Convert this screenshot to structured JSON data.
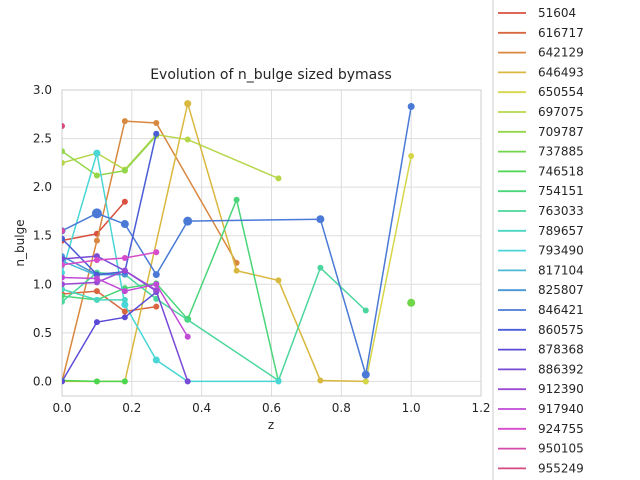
{
  "chart_data": {
    "type": "line",
    "title": "Evolution of n_bulge sized bymass",
    "xlabel": "z",
    "ylabel": "n_bulge",
    "xlim": [
      0.0,
      1.2
    ],
    "ylim": [
      -0.15,
      3.0
    ],
    "xticks": [
      "0.0",
      "0.2",
      "0.4",
      "0.6",
      "0.8",
      "1.0",
      "1.2"
    ],
    "yticks": [
      "0.0",
      "0.5",
      "1.0",
      "1.5",
      "2.0",
      "2.5",
      "3.0"
    ],
    "grid": true,
    "legend_position": "right",
    "series": [
      {
        "name": "51604",
        "color": "#d9503f",
        "x": [
          0.0,
          0.1,
          0.18
        ],
        "y": [
          1.45,
          1.52,
          1.85
        ],
        "size": [
          3,
          3,
          3
        ]
      },
      {
        "name": "616717",
        "color": "#d9663f",
        "x": [
          0.0,
          0.1,
          0.18,
          0.27
        ],
        "y": [
          0.9,
          0.93,
          0.72,
          0.77
        ],
        "size": [
          3,
          3,
          3,
          3
        ]
      },
      {
        "name": "642129",
        "color": "#d9883f",
        "x": [
          0.0,
          0.1,
          0.18,
          0.27,
          0.5
        ],
        "y": [
          0.0,
          1.45,
          2.68,
          2.66,
          1.22
        ],
        "size": [
          3,
          3,
          3,
          3,
          3
        ]
      },
      {
        "name": "646493",
        "color": "#d9b83f",
        "x": [
          0.0,
          0.1,
          0.18,
          0.36,
          0.5,
          0.62,
          0.74,
          0.87
        ],
        "y": [
          0.0,
          0.0,
          0.0,
          2.86,
          1.14,
          1.04,
          0.01,
          0.0
        ],
        "size": [
          3,
          3,
          3,
          3.5,
          3,
          3,
          3,
          3
        ]
      },
      {
        "name": "650554",
        "color": "#d6d64a",
        "x": [
          0.87,
          1.0
        ],
        "y": [
          0.0,
          2.32
        ],
        "size": [
          3,
          3
        ]
      },
      {
        "name": "697075",
        "color": "#b6d64a",
        "x": [
          0.0,
          0.1,
          0.18,
          0.27,
          0.36,
          0.62
        ],
        "y": [
          2.25,
          2.35,
          2.18,
          2.54,
          2.49,
          2.09
        ],
        "size": [
          3,
          3,
          3,
          3,
          3,
          3
        ]
      },
      {
        "name": "709787",
        "color": "#94d64a",
        "x": [
          0.0,
          0.1,
          0.18,
          0.27
        ],
        "y": [
          2.37,
          2.12,
          2.17,
          2.53
        ],
        "size": [
          3,
          3,
          3,
          3
        ]
      },
      {
        "name": "737885",
        "color": "#6fd64a",
        "x": [
          1.0
        ],
        "y": [
          0.81
        ],
        "size": [
          4
        ]
      },
      {
        "name": "746518",
        "color": "#4ad64f",
        "x": [
          0.0,
          0.1,
          0.18
        ],
        "y": [
          0.01,
          0.0,
          0.0
        ],
        "size": [
          3,
          3,
          3
        ]
      },
      {
        "name": "754151",
        "color": "#4ad678",
        "x": [
          0.0,
          0.1,
          0.18,
          0.27,
          0.36,
          0.5,
          0.62
        ],
        "y": [
          0.88,
          0.84,
          0.96,
          1.01,
          0.64,
          1.87,
          0.0
        ],
        "size": [
          3,
          3,
          3,
          3,
          3.5,
          3,
          3
        ]
      },
      {
        "name": "763033",
        "color": "#4ad69c",
        "x": [
          0.0,
          0.1,
          0.18,
          0.27,
          0.62,
          0.74,
          0.87
        ],
        "y": [
          0.82,
          1.12,
          1.1,
          0.85,
          0.01,
          1.17,
          0.73
        ],
        "size": [
          3,
          3,
          3,
          3,
          3,
          3,
          3
        ]
      },
      {
        "name": "789657",
        "color": "#4ad6c0",
        "x": [
          0.0,
          0.1,
          0.18
        ],
        "y": [
          0.95,
          0.84,
          0.84
        ],
        "size": [
          3,
          3,
          3
        ]
      },
      {
        "name": "793490",
        "color": "#4ad6d6",
        "x": [
          0.0,
          0.1,
          0.18,
          0.27,
          0.36,
          0.62
        ],
        "y": [
          1.12,
          2.35,
          0.79,
          0.22,
          0.0,
          0.0
        ],
        "size": [
          3,
          3.5,
          3.5,
          3.5,
          3,
          3
        ]
      },
      {
        "name": "817104",
        "color": "#4ab8d6",
        "x": [
          0.0,
          0.1
        ],
        "y": [
          1.24,
          1.09
        ],
        "size": [
          3,
          3
        ]
      },
      {
        "name": "825807",
        "color": "#4a94d6",
        "x": [
          0.0,
          0.1,
          0.18
        ],
        "y": [
          1.29,
          1.1,
          1.1
        ],
        "size": [
          3,
          3,
          3
        ]
      },
      {
        "name": "846421",
        "color": "#4a7ad6",
        "x": [
          0.0,
          0.1,
          0.18,
          0.27,
          0.36,
          0.74,
          0.87,
          1.0
        ],
        "y": [
          1.55,
          1.73,
          1.62,
          1.1,
          1.65,
          1.67,
          0.07,
          2.83
        ],
        "size": [
          3.5,
          5,
          4,
          3.5,
          4.5,
          4,
          4,
          3.5
        ]
      },
      {
        "name": "860575",
        "color": "#4a5cd6",
        "x": [
          0.0,
          0.1,
          0.18,
          0.27
        ],
        "y": [
          1.47,
          1.1,
          1.13,
          2.55
        ],
        "size": [
          3,
          3,
          3,
          3
        ]
      },
      {
        "name": "878368",
        "color": "#5a4ad6",
        "x": [
          0.0,
          0.1,
          0.18,
          0.27
        ],
        "y": [
          0.0,
          0.61,
          0.66,
          0.92
        ],
        "size": [
          3,
          3,
          3,
          3
        ]
      },
      {
        "name": "886392",
        "color": "#784ad6",
        "x": [
          0.0,
          0.1,
          0.18,
          0.27,
          0.36
        ],
        "y": [
          1.26,
          1.29,
          1.14,
          0.93,
          0.0
        ],
        "size": [
          3,
          3,
          3,
          3,
          3
        ]
      },
      {
        "name": "912390",
        "color": "#9c4ad6",
        "x": [
          0.0,
          0.1,
          0.18,
          0.27
        ],
        "y": [
          1.0,
          1.02,
          1.14,
          0.94
        ],
        "size": [
          3,
          3,
          3,
          3
        ]
      },
      {
        "name": "917940",
        "color": "#c04ad6",
        "x": [
          0.0,
          0.1,
          0.18,
          0.27,
          0.36
        ],
        "y": [
          1.07,
          1.06,
          0.93,
          1.0,
          0.46
        ],
        "size": [
          3,
          3,
          3,
          3,
          3
        ]
      },
      {
        "name": "924755",
        "color": "#d64acb",
        "x": [
          0.0,
          0.1,
          0.18,
          0.27
        ],
        "y": [
          1.2,
          1.25,
          1.27,
          1.33
        ],
        "size": [
          3,
          3,
          3,
          3
        ]
      },
      {
        "name": "950105",
        "color": "#d64aa8",
        "x": [
          0.0
        ],
        "y": [
          1.55
        ],
        "size": [
          3
        ]
      },
      {
        "name": "955249",
        "color": "#d64a7f",
        "x": [
          0.0
        ],
        "y": [
          2.63
        ],
        "size": [
          3
        ]
      }
    ]
  }
}
